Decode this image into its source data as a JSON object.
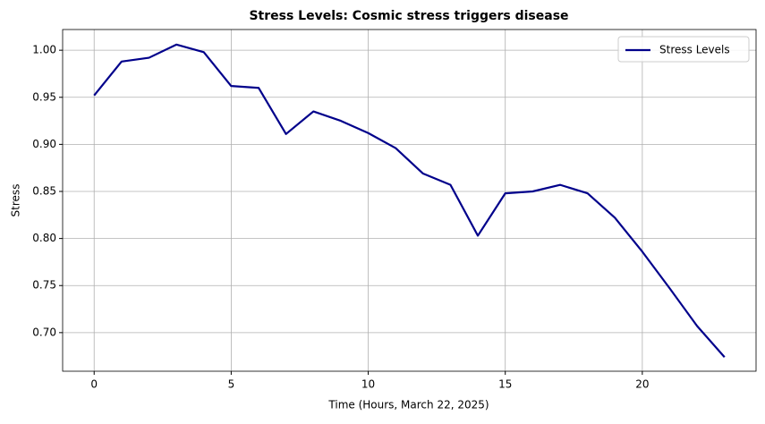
{
  "chart_data": {
    "type": "line",
    "title": "Stress Levels: Cosmic stress triggers disease",
    "x_label": "Time (Hours, March 22, 2025)",
    "y_label": "Stress",
    "x": [
      0,
      1,
      2,
      3,
      4,
      5,
      6,
      7,
      8,
      9,
      10,
      11,
      12,
      13,
      14,
      15,
      16,
      17,
      18,
      19,
      20,
      21,
      22,
      23
    ],
    "series": [
      {
        "name": "Stress Levels",
        "color": "#00008b",
        "values": [
          0.952,
          0.988,
          0.992,
          1.006,
          0.998,
          0.962,
          0.96,
          0.911,
          0.935,
          0.925,
          0.912,
          0.896,
          0.869,
          0.857,
          0.803,
          0.848,
          0.85,
          0.857,
          0.848,
          0.822,
          0.786,
          0.747,
          0.707,
          0.674
        ]
      }
    ],
    "xlim": [
      -1.15,
      24.15
    ],
    "ylim": [
      0.659,
      1.022
    ],
    "xticks": [
      0,
      5,
      10,
      15,
      20
    ],
    "yticks": [
      {
        "value": 0.7,
        "label": "0.70"
      },
      {
        "value": 0.75,
        "label": "0.75"
      },
      {
        "value": 0.8,
        "label": "0.80"
      },
      {
        "value": 0.85,
        "label": "0.85"
      },
      {
        "value": 0.9,
        "label": "0.90"
      },
      {
        "value": 0.95,
        "label": "0.95"
      },
      {
        "value": 1.0,
        "label": "1.00"
      }
    ],
    "grid": true,
    "legend": "upper right"
  }
}
